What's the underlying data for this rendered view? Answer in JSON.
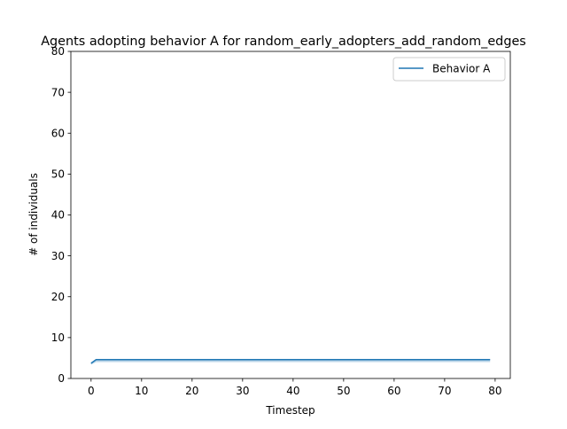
{
  "chart_data": {
    "type": "line",
    "title": "Agents adopting behavior A for random_early_adopters_add_random_edges",
    "xlabel": "Timestep",
    "ylabel": "# of individuals",
    "xlim": [
      -4,
      83
    ],
    "ylim": [
      0,
      80
    ],
    "xticks": [
      0,
      10,
      20,
      30,
      40,
      50,
      60,
      70,
      80
    ],
    "yticks": [
      0,
      10,
      20,
      30,
      40,
      50,
      60,
      70,
      80
    ],
    "grid": false,
    "legend_position": "top-right",
    "series": [
      {
        "name": "Behavior A",
        "color": "#1f77b4",
        "x_start": 0,
        "x_end": 79,
        "values": [
          3.7,
          4.6,
          4.6,
          4.6,
          4.6,
          4.6,
          4.6,
          4.6,
          4.6,
          4.6,
          4.6,
          4.6,
          4.6,
          4.6,
          4.6,
          4.6,
          4.6,
          4.6,
          4.6,
          4.6,
          4.6,
          4.6,
          4.6,
          4.6,
          4.6,
          4.6,
          4.6,
          4.6,
          4.6,
          4.6,
          4.6,
          4.6,
          4.6,
          4.6,
          4.6,
          4.6,
          4.6,
          4.6,
          4.6,
          4.6,
          4.6,
          4.6,
          4.6,
          4.6,
          4.6,
          4.6,
          4.6,
          4.6,
          4.6,
          4.6,
          4.6,
          4.6,
          4.6,
          4.6,
          4.6,
          4.6,
          4.6,
          4.6,
          4.6,
          4.6,
          4.6,
          4.6,
          4.6,
          4.6,
          4.6,
          4.6,
          4.6,
          4.6,
          4.6,
          4.6,
          4.6,
          4.6,
          4.6,
          4.6,
          4.6,
          4.6,
          4.6,
          4.6,
          4.6,
          4.6
        ],
        "band_lower": [
          3.4,
          4.0,
          4.0,
          4.0,
          4.0,
          4.0,
          4.0,
          4.0,
          4.0,
          4.0,
          4.0,
          4.0,
          4.0,
          4.0,
          4.0,
          4.0,
          4.0,
          4.0,
          4.0,
          4.0,
          4.0,
          4.0,
          4.0,
          4.0,
          4.0,
          4.0,
          4.0,
          4.0,
          4.0,
          4.0,
          4.0,
          4.0,
          4.0,
          4.0,
          4.0,
          4.0,
          4.0,
          4.0,
          4.0,
          4.0,
          4.0,
          4.0,
          4.0,
          4.0,
          4.0,
          4.0,
          4.0,
          4.0,
          4.0,
          4.0,
          4.0,
          4.0,
          4.0,
          4.0,
          4.0,
          4.0,
          4.0,
          4.0,
          4.0,
          4.0,
          4.0,
          4.0,
          4.0,
          4.0,
          4.0,
          4.0,
          4.0,
          4.0,
          4.0,
          4.0,
          4.0,
          4.0,
          4.0,
          4.0,
          4.0,
          4.0,
          4.0,
          4.0,
          4.0,
          4.0
        ],
        "band_upper": [
          4.0,
          4.8,
          4.8,
          4.8,
          4.8,
          4.8,
          4.8,
          4.8,
          4.8,
          4.8,
          4.8,
          4.8,
          4.8,
          4.8,
          4.8,
          4.8,
          4.8,
          4.8,
          4.8,
          4.8,
          4.8,
          4.8,
          4.8,
          4.8,
          4.8,
          4.8,
          4.8,
          4.8,
          4.8,
          4.8,
          4.8,
          4.8,
          4.8,
          4.8,
          4.8,
          4.8,
          4.8,
          4.8,
          4.8,
          4.8,
          4.8,
          4.8,
          4.8,
          4.8,
          4.8,
          4.8,
          4.8,
          4.8,
          4.8,
          4.8,
          4.8,
          4.8,
          4.8,
          4.8,
          4.8,
          4.8,
          4.8,
          4.8,
          4.8,
          4.8,
          4.8,
          4.8,
          4.8,
          4.8,
          4.8,
          4.8,
          4.8,
          4.8,
          4.8,
          4.8,
          4.8,
          4.8,
          4.8,
          4.8,
          4.8,
          4.8,
          4.8,
          4.8,
          4.8,
          4.8
        ]
      }
    ]
  }
}
